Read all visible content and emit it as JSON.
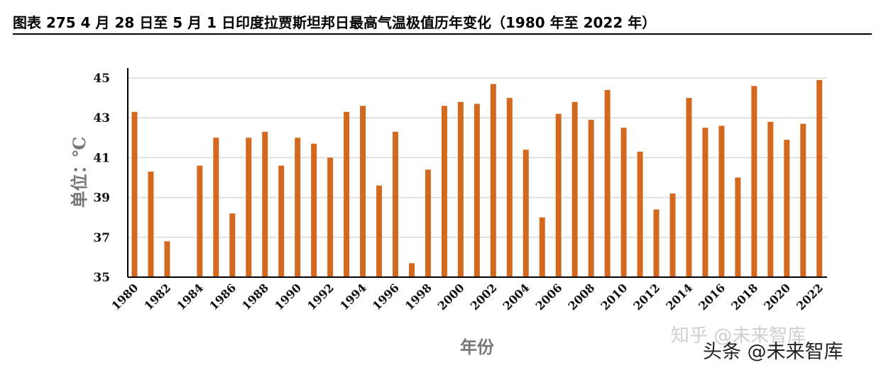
{
  "figure": {
    "title": "图表 275 4 月 28 日至 5 月 1 日印度拉贾斯坦邦日最高气温极值历年变化（1980 年至 2022 年）"
  },
  "watermarks": {
    "zhihu": "知乎 @未来智库",
    "toutiao": "头条 @未来智库"
  },
  "colors": {
    "bar": "#d2691e",
    "grid": "#d9d9d9",
    "axis": "#000000"
  },
  "chart_data": {
    "type": "bar",
    "xlabel": "年份",
    "ylabel": "单位：℃",
    "ylim": [
      35,
      45.5
    ],
    "yticks": [
      35,
      37,
      39,
      41,
      43,
      45
    ],
    "grid": "horizontal",
    "categories": [
      "1980",
      "1981",
      "1982",
      "1983",
      "1984",
      "1985",
      "1986",
      "1987",
      "1988",
      "1989",
      "1990",
      "1991",
      "1992",
      "1993",
      "1994",
      "1995",
      "1996",
      "1997",
      "1998",
      "1999",
      "2000",
      "2001",
      "2002",
      "2003",
      "2004",
      "2005",
      "2006",
      "2007",
      "2008",
      "2009",
      "2010",
      "2011",
      "2012",
      "2013",
      "2014",
      "2015",
      "2016",
      "2017",
      "2018",
      "2019",
      "2020",
      "2021",
      "2022"
    ],
    "x_tick_labels": [
      "1980",
      "1982",
      "1984",
      "1986",
      "1988",
      "1990",
      "1992",
      "1994",
      "1996",
      "1998",
      "2000",
      "2002",
      "2004",
      "2006",
      "2008",
      "2010",
      "2012",
      "2014",
      "2016",
      "2018",
      "2020",
      "2022"
    ],
    "values": [
      43.3,
      40.3,
      36.8,
      null,
      40.6,
      42.0,
      38.2,
      42.0,
      42.3,
      40.6,
      42.0,
      41.7,
      41.0,
      43.3,
      43.6,
      39.6,
      42.3,
      35.7,
      40.4,
      43.6,
      43.8,
      43.7,
      44.7,
      44.0,
      41.4,
      38.0,
      43.2,
      43.8,
      42.9,
      44.4,
      42.5,
      41.3,
      38.4,
      39.2,
      44.0,
      42.5,
      42.6,
      40.0,
      44.6,
      42.8,
      41.9,
      42.7,
      44.9
    ]
  }
}
